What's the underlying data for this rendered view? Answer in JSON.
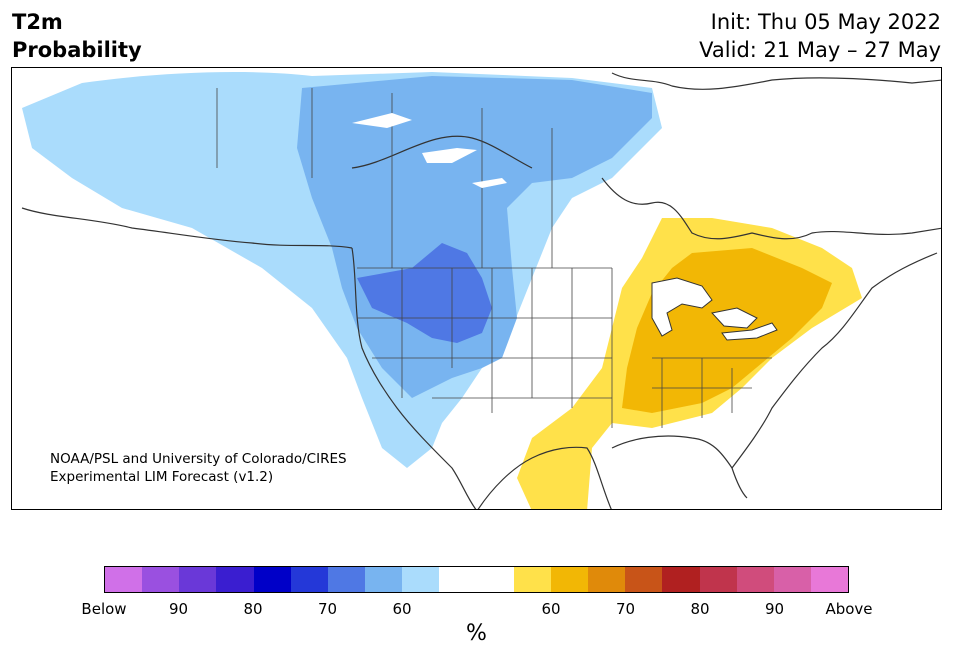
{
  "header": {
    "title_line1": "T2m",
    "title_line2": "Probability",
    "init": "Init: Thu 05 May 2022",
    "valid": "Valid: 21 May – 27 May"
  },
  "map": {
    "credit_line1": "NOAA/PSL and University of Colorado/CIRES",
    "credit_line2": "Experimental LIM Forecast (v1.2)",
    "colors": {
      "below_60": "#aadcfc",
      "below_70": "#78b4f0",
      "below_80": "#4f78e4",
      "above_60": "#ffe14a",
      "above_70": "#f2b705",
      "land": "#ffffff",
      "borders": "#333333"
    }
  },
  "colorbar": {
    "colors": [
      "#d070e8",
      "#9a50e0",
      "#6a38d8",
      "#3a1ed0",
      "#0000c8",
      "#2438d8",
      "#4f78e4",
      "#78b4f0",
      "#aadcfc",
      "#ffffff",
      "#ffffff",
      "#ffe14a",
      "#f2b705",
      "#e08a0a",
      "#c85418",
      "#b02020",
      "#c0344c",
      "#d04c7c",
      "#d860a8",
      "#e878d8"
    ],
    "labels": [
      "Below",
      "90",
      "80",
      "70",
      "60",
      "60",
      "70",
      "80",
      "90",
      "Above"
    ],
    "unit": "%"
  }
}
